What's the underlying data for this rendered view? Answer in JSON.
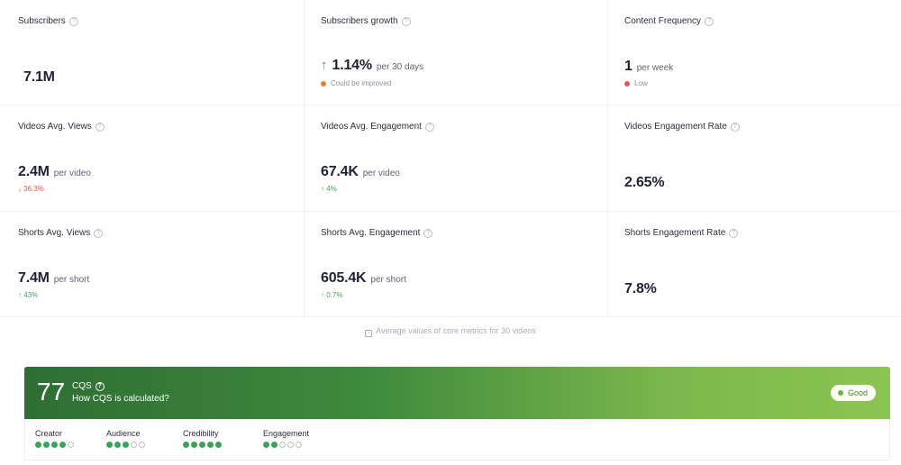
{
  "metrics": [
    {
      "label": "Subscribers",
      "value": "7.1M",
      "unit": "",
      "sub": "",
      "subtype": "",
      "arrow": ""
    },
    {
      "label": "Subscribers growth",
      "value": "1.14%",
      "unit": "per 30 days",
      "sub": "Could be improved",
      "subtype": "orange",
      "arrow": "↑"
    },
    {
      "label": "Content Frequency",
      "value": "1",
      "unit": "per week",
      "sub": "Low",
      "subtype": "red-dot",
      "arrow": ""
    },
    {
      "label": "Videos Avg. Views",
      "value": "2.4M",
      "unit": "per video",
      "sub": "↓ 36.3%",
      "subtype": "red",
      "arrow": ""
    },
    {
      "label": "Videos Avg. Engagement",
      "value": "67.4K",
      "unit": "per video",
      "sub": "↑ 4%",
      "subtype": "green",
      "arrow": ""
    },
    {
      "label": "Videos Engagement Rate",
      "value": "2.65%",
      "unit": "",
      "sub": "",
      "subtype": "",
      "arrow": ""
    },
    {
      "label": "Shorts Avg. Views",
      "value": "7.4M",
      "unit": "per short",
      "sub": "↑ 43%",
      "subtype": "green",
      "arrow": ""
    },
    {
      "label": "Shorts Avg. Engagement",
      "value": "605.4K",
      "unit": "per short",
      "sub": "↑ 0.7%",
      "subtype": "green",
      "arrow": ""
    },
    {
      "label": "Shorts Engagement Rate",
      "value": "7.8%",
      "unit": "",
      "sub": "",
      "subtype": "",
      "arrow": ""
    }
  ],
  "note": "Average values of core metrics for 30 videos",
  "cqs": {
    "score": "77",
    "title": "CQS",
    "how": "How CQS is calculated?",
    "badge": "Good",
    "breakdown": [
      {
        "label": "Creator",
        "filled": 4,
        "total": 5
      },
      {
        "label": "Audience",
        "filled": 3,
        "total": 5
      },
      {
        "label": "Credibility",
        "filled": 5,
        "total": 5
      },
      {
        "label": "Engagement",
        "filled": 2,
        "total": 5
      }
    ]
  },
  "colors": {
    "green": "#3aa35a",
    "red": "#e2574c",
    "orange": "#f07d2c",
    "dark_green": "#2e6e34",
    "light_green": "#8cc452"
  }
}
